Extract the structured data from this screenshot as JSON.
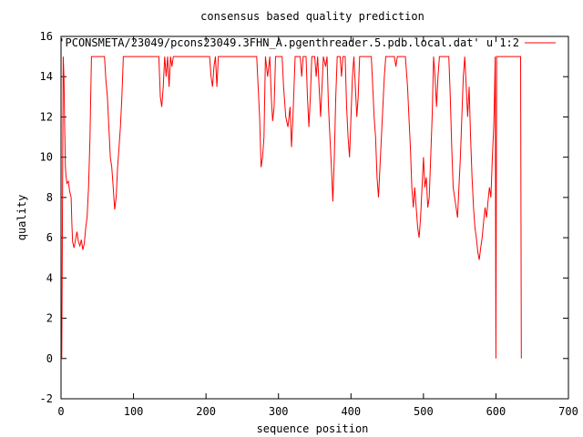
{
  "chart_data": {
    "type": "line",
    "title": "consensus based quality prediction",
    "xlabel": "sequence position",
    "ylabel": "quality",
    "xlim": [
      0,
      700
    ],
    "ylim": [
      -2,
      16
    ],
    "xticks": [
      0,
      100,
      200,
      300,
      400,
      500,
      600,
      700
    ],
    "yticks": [
      -2,
      0,
      2,
      4,
      6,
      8,
      10,
      12,
      14,
      16
    ],
    "grid": false,
    "legend_position": "top-right",
    "series": [
      {
        "name": "'PCONSMETA/23049/pcons23049.3FHN_A.pgenthreader.5.pdb.local.dat' u 1:2",
        "color": "#ff0000",
        "points": [
          [
            1,
            0
          ],
          [
            2,
            7.5
          ],
          [
            3,
            15
          ],
          [
            4,
            14
          ],
          [
            5,
            11.5
          ],
          [
            6,
            9.5
          ],
          [
            7,
            9
          ],
          [
            8,
            8.7
          ],
          [
            10,
            8.8
          ],
          [
            12,
            8.3
          ],
          [
            14,
            8
          ],
          [
            15,
            6.7
          ],
          [
            16,
            5.8
          ],
          [
            18,
            5.5
          ],
          [
            20,
            5.9
          ],
          [
            22,
            6.3
          ],
          [
            24,
            5.8
          ],
          [
            26,
            5.6
          ],
          [
            28,
            5.9
          ],
          [
            30,
            5.4
          ],
          [
            32,
            5.7
          ],
          [
            34,
            6.5
          ],
          [
            36,
            7.0
          ],
          [
            38,
            8.5
          ],
          [
            40,
            11
          ],
          [
            42,
            15
          ],
          [
            50,
            15
          ],
          [
            60,
            15
          ],
          [
            62,
            13.8
          ],
          [
            64,
            13
          ],
          [
            66,
            11.5
          ],
          [
            68,
            10
          ],
          [
            70,
            9.5
          ],
          [
            72,
            8.5
          ],
          [
            74,
            7.4
          ],
          [
            76,
            8
          ],
          [
            78,
            9.5
          ],
          [
            80,
            10.5
          ],
          [
            82,
            11.5
          ],
          [
            84,
            13
          ],
          [
            86,
            15
          ],
          [
            100,
            15
          ],
          [
            120,
            15
          ],
          [
            135,
            15
          ],
          [
            137,
            13
          ],
          [
            139,
            12.5
          ],
          [
            141,
            13.5
          ],
          [
            143,
            15
          ],
          [
            145,
            14
          ],
          [
            147,
            15
          ],
          [
            149,
            13.5
          ],
          [
            151,
            15
          ],
          [
            153,
            14.5
          ],
          [
            155,
            15
          ],
          [
            170,
            15
          ],
          [
            200,
            15
          ],
          [
            205,
            15
          ],
          [
            207,
            14
          ],
          [
            209,
            13.5
          ],
          [
            211,
            14.5
          ],
          [
            213,
            15
          ],
          [
            215,
            13.5
          ],
          [
            217,
            15
          ],
          [
            220,
            15
          ],
          [
            250,
            15
          ],
          [
            270,
            15
          ],
          [
            272,
            13.5
          ],
          [
            274,
            12
          ],
          [
            276,
            9.5
          ],
          [
            278,
            10
          ],
          [
            280,
            11
          ],
          [
            282,
            15
          ],
          [
            285,
            14
          ],
          [
            288,
            15
          ],
          [
            290,
            13
          ],
          [
            292,
            11.8
          ],
          [
            294,
            12.5
          ],
          [
            296,
            15
          ],
          [
            300,
            15
          ],
          [
            305,
            15
          ],
          [
            307,
            13.5
          ],
          [
            310,
            12
          ],
          [
            313,
            11.5
          ],
          [
            316,
            12.5
          ],
          [
            318,
            10.5
          ],
          [
            320,
            12
          ],
          [
            323,
            15
          ],
          [
            330,
            15
          ],
          [
            332,
            14
          ],
          [
            334,
            15
          ],
          [
            338,
            15
          ],
          [
            340,
            13
          ],
          [
            342,
            11.5
          ],
          [
            344,
            13
          ],
          [
            346,
            15
          ],
          [
            350,
            15
          ],
          [
            352,
            14
          ],
          [
            354,
            15
          ],
          [
            356,
            13.5
          ],
          [
            358,
            12
          ],
          [
            360,
            13.5
          ],
          [
            362,
            15
          ],
          [
            365,
            14.5
          ],
          [
            367,
            15
          ],
          [
            369,
            12.5
          ],
          [
            371,
            11
          ],
          [
            373,
            9.5
          ],
          [
            375,
            7.8
          ],
          [
            377,
            10
          ],
          [
            379,
            13
          ],
          [
            381,
            15
          ],
          [
            385,
            15
          ],
          [
            387,
            14
          ],
          [
            389,
            15
          ],
          [
            392,
            15
          ],
          [
            394,
            12.5
          ],
          [
            396,
            11
          ],
          [
            398,
            10
          ],
          [
            400,
            12
          ],
          [
            402,
            14
          ],
          [
            404,
            15
          ],
          [
            406,
            13.5
          ],
          [
            408,
            12
          ],
          [
            410,
            13
          ],
          [
            412,
            15
          ],
          [
            420,
            15
          ],
          [
            428,
            15
          ],
          [
            430,
            13.5
          ],
          [
            432,
            12
          ],
          [
            434,
            11
          ],
          [
            436,
            9
          ],
          [
            438,
            8
          ],
          [
            440,
            9.5
          ],
          [
            442,
            11
          ],
          [
            444,
            12.5
          ],
          [
            446,
            14
          ],
          [
            448,
            15
          ],
          [
            460,
            15
          ],
          [
            462,
            14.5
          ],
          [
            464,
            15
          ],
          [
            475,
            15
          ],
          [
            478,
            13.5
          ],
          [
            480,
            12
          ],
          [
            482,
            10.5
          ],
          [
            484,
            8.5
          ],
          [
            486,
            7.5
          ],
          [
            488,
            8.5
          ],
          [
            490,
            7.5
          ],
          [
            492,
            6.5
          ],
          [
            494,
            6
          ],
          [
            496,
            7
          ],
          [
            498,
            8.5
          ],
          [
            500,
            10
          ],
          [
            502,
            8.5
          ],
          [
            504,
            9
          ],
          [
            506,
            7.5
          ],
          [
            508,
            8
          ],
          [
            510,
            10
          ],
          [
            512,
            12
          ],
          [
            514,
            15
          ],
          [
            516,
            14
          ],
          [
            518,
            12.5
          ],
          [
            520,
            14
          ],
          [
            522,
            15
          ],
          [
            535,
            15
          ],
          [
            537,
            13
          ],
          [
            539,
            10.5
          ],
          [
            541,
            8.5
          ],
          [
            543,
            8
          ],
          [
            545,
            7.5
          ],
          [
            547,
            7
          ],
          [
            549,
            8.5
          ],
          [
            551,
            10
          ],
          [
            553,
            12
          ],
          [
            555,
            14
          ],
          [
            557,
            15
          ],
          [
            559,
            13.5
          ],
          [
            561,
            12
          ],
          [
            563,
            13.5
          ],
          [
            565,
            11
          ],
          [
            567,
            9
          ],
          [
            569,
            7.5
          ],
          [
            571,
            6.5
          ],
          [
            573,
            6
          ],
          [
            575,
            5.3
          ],
          [
            577,
            4.9
          ],
          [
            579,
            5.5
          ],
          [
            581,
            6
          ],
          [
            583,
            6.8
          ],
          [
            585,
            7.5
          ],
          [
            587,
            7
          ],
          [
            589,
            7.8
          ],
          [
            591,
            8.5
          ],
          [
            593,
            8
          ],
          [
            595,
            10
          ],
          [
            597,
            11.5
          ],
          [
            598,
            13
          ],
          [
            599,
            15
          ],
          [
            600,
            0
          ],
          [
            601,
            15
          ],
          [
            610,
            15
          ],
          [
            620,
            15
          ],
          [
            630,
            15
          ],
          [
            634,
            15
          ],
          [
            635,
            0
          ]
        ]
      }
    ]
  }
}
